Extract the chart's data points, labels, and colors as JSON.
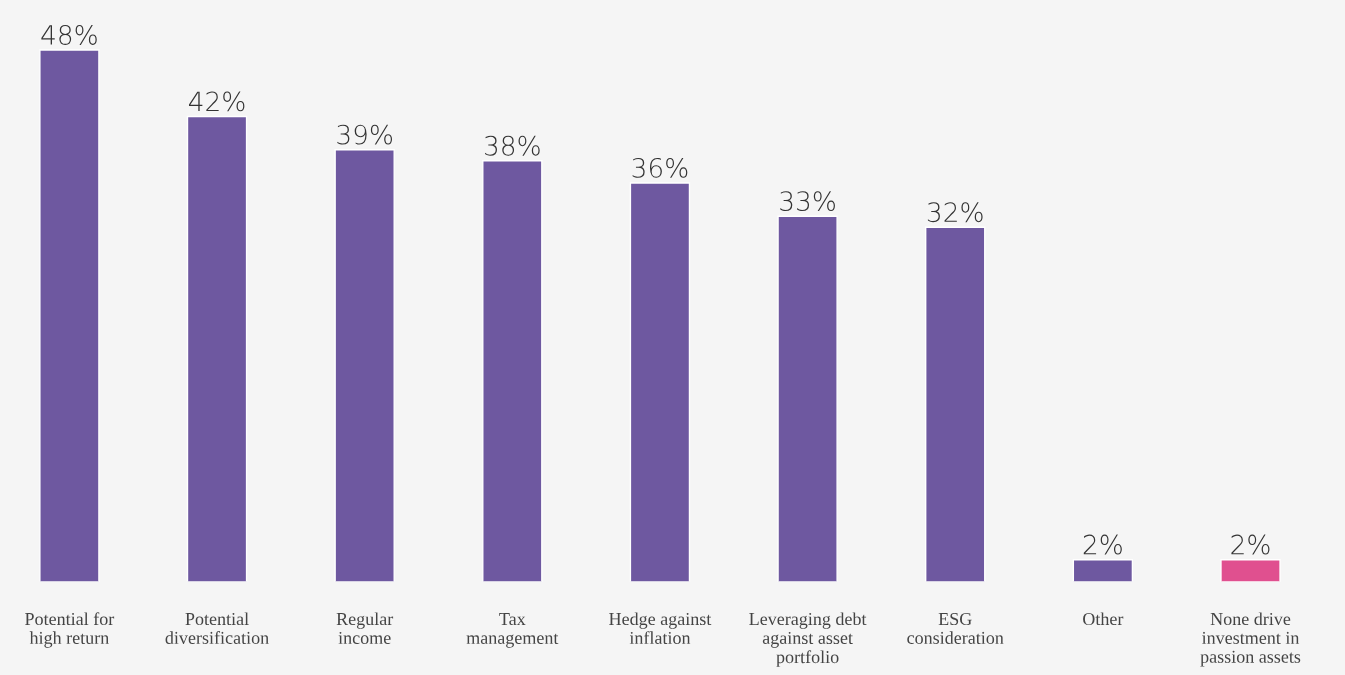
{
  "chart_data": {
    "type": "bar",
    "categories": [
      "Potential for\nhigh return",
      "Potential\ndiversification",
      "Regular\nincome",
      "Tax\nmanagement",
      "Hedge against\ninflation",
      "Leveraging debt\nagainst asset\nportfolio",
      "ESG\nconsideration",
      "Other",
      "None drive\ninvestment in\npassion assets"
    ],
    "values": [
      48,
      42,
      39,
      38,
      36,
      33,
      32,
      2,
      2
    ],
    "colors": [
      "#6e58a0",
      "#6e58a0",
      "#6e58a0",
      "#6e58a0",
      "#6e58a0",
      "#6e58a0",
      "#6e58a0",
      "#6e58a0",
      "#e0508f"
    ],
    "value_labels": [
      "48%",
      "42%",
      "39%",
      "38%",
      "36%",
      "33%",
      "32%",
      "2%",
      "2%"
    ]
  }
}
